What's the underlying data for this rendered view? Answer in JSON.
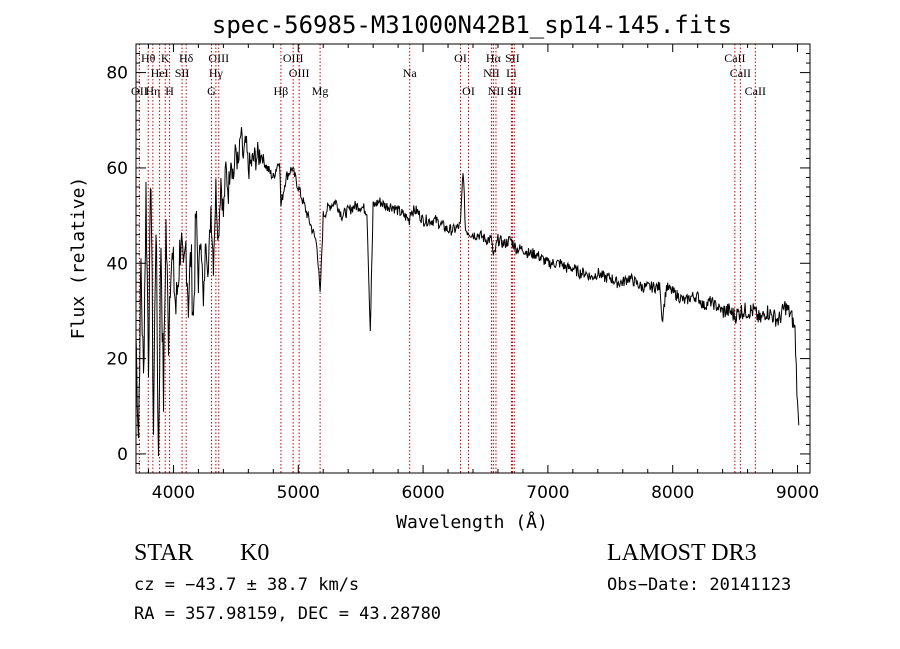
{
  "chart_data": {
    "type": "line",
    "title": "spec-56985-M31000N42B1_sp14-145.fits",
    "xlabel": "Wavelength (Å)",
    "ylabel": "Flux (relative)",
    "xlim": [
      3700,
      9100
    ],
    "ylim": [
      -4,
      86
    ],
    "xticks": [
      4000,
      5000,
      6000,
      7000,
      8000,
      9000
    ],
    "yticks": [
      0,
      20,
      40,
      60,
      80
    ],
    "series": [
      {
        "name": "spectrum",
        "x": [
          3700,
          3720,
          3740,
          3760,
          3780,
          3800,
          3820,
          3840,
          3860,
          3880,
          3900,
          3920,
          3940,
          3960,
          3980,
          4000,
          4020,
          4040,
          4060,
          4080,
          4100,
          4120,
          4140,
          4160,
          4180,
          4200,
          4220,
          4240,
          4260,
          4280,
          4300,
          4320,
          4340,
          4360,
          4380,
          4400,
          4420,
          4440,
          4460,
          4480,
          4500,
          4520,
          4540,
          4560,
          4580,
          4600,
          4650,
          4700,
          4750,
          4800,
          4850,
          4861,
          4900,
          4950,
          5000,
          5050,
          5100,
          5150,
          5175,
          5200,
          5250,
          5300,
          5350,
          5400,
          5450,
          5500,
          5550,
          5577,
          5600,
          5650,
          5700,
          5750,
          5800,
          5850,
          5890,
          5900,
          5950,
          6000,
          6050,
          6100,
          6150,
          6200,
          6250,
          6300,
          6320,
          6340,
          6400,
          6450,
          6500,
          6550,
          6563,
          6600,
          6650,
          6700,
          6750,
          6800,
          6850,
          6900,
          6950,
          7000,
          7050,
          7100,
          7150,
          7200,
          7250,
          7300,
          7350,
          7400,
          7450,
          7500,
          7550,
          7600,
          7650,
          7700,
          7750,
          7800,
          7850,
          7900,
          7915,
          7950,
          8000,
          8050,
          8100,
          8150,
          8200,
          8250,
          8300,
          8350,
          8400,
          8450,
          8500,
          8550,
          8600,
          8650,
          8700,
          8750,
          8800,
          8850,
          8900,
          8950,
          8980,
          9000,
          9010
        ],
        "values": [
          25,
          4,
          40,
          15,
          55,
          20,
          60,
          5,
          50,
          -1,
          45,
          12,
          48,
          25,
          42,
          38,
          30,
          38,
          46,
          35,
          44,
          32,
          42,
          28,
          50,
          36,
          47,
          30,
          46,
          38,
          52,
          40,
          56,
          45,
          58,
          50,
          60,
          55,
          63,
          58,
          64,
          60,
          67,
          62,
          65,
          60,
          62,
          63,
          60,
          58,
          62,
          52,
          58,
          60,
          56,
          52,
          48,
          44,
          33,
          50,
          52,
          53,
          50,
          51,
          52,
          52,
          51,
          26,
          52,
          53,
          52,
          52,
          51,
          50,
          49,
          51,
          51,
          49,
          49,
          49,
          48,
          47,
          47,
          48,
          60,
          47,
          46,
          46,
          45,
          45,
          41,
          45,
          44,
          45,
          43,
          43,
          42,
          42,
          41,
          40,
          40,
          40,
          39,
          39,
          38,
          38,
          37,
          38,
          37,
          37,
          36,
          36,
          37,
          36,
          35,
          35,
          35,
          35,
          28,
          35,
          34,
          33,
          32,
          33,
          33,
          31,
          32,
          31,
          30,
          30,
          29,
          30,
          30,
          30,
          28,
          30,
          29,
          28,
          31,
          29,
          26,
          10,
          6
        ]
      }
    ],
    "lines": [
      {
        "label": "Hθ",
        "wl": 3798
      },
      {
        "label": "OII",
        "wl": 3727
      },
      {
        "label": "Hη",
        "wl": 3835
      },
      {
        "label": "K",
        "wl": 3934
      },
      {
        "label": "HeI",
        "wl": 3889
      },
      {
        "label": "H",
        "wl": 3969
      },
      {
        "label": "SII",
        "wl": 4069
      },
      {
        "label": "Hδ",
        "wl": 4102
      },
      {
        "label": "OIII",
        "wl": 4363
      },
      {
        "label": "Hγ",
        "wl": 4340
      },
      {
        "label": "G",
        "wl": 4305
      },
      {
        "label": "OIII",
        "wl": 4959
      },
      {
        "label": "OIII",
        "wl": 5007
      },
      {
        "label": "Hβ",
        "wl": 4861
      },
      {
        "label": "Mg",
        "wl": 5175
      },
      {
        "label": "Na",
        "wl": 5893
      },
      {
        "label": "OI",
        "wl": 6300
      },
      {
        "label": "OI",
        "wl": 6364
      },
      {
        "label": "Hα",
        "wl": 6563
      },
      {
        "label": "SII",
        "wl": 6716
      },
      {
        "label": "NII",
        "wl": 6548
      },
      {
        "label": "Li",
        "wl": 6708
      },
      {
        "label": "NII",
        "wl": 6584
      },
      {
        "label": "SII",
        "wl": 6731
      },
      {
        "label": "CaII",
        "wl": 8498
      },
      {
        "label": "CaII",
        "wl": 8542
      },
      {
        "label": "CaII",
        "wl": 8662
      }
    ]
  },
  "footer": {
    "star": "STAR",
    "subclass": "K0",
    "cz": "cz = −43.7 ± 38.7 km/s",
    "coords": "RA = 357.98159, DEC =  43.28780",
    "survey": "LAMOST DR3",
    "obs_date": "Obs−Date: 20141123"
  },
  "colors": {
    "spectrum": "#000000",
    "line_marker": "#cc0000"
  }
}
